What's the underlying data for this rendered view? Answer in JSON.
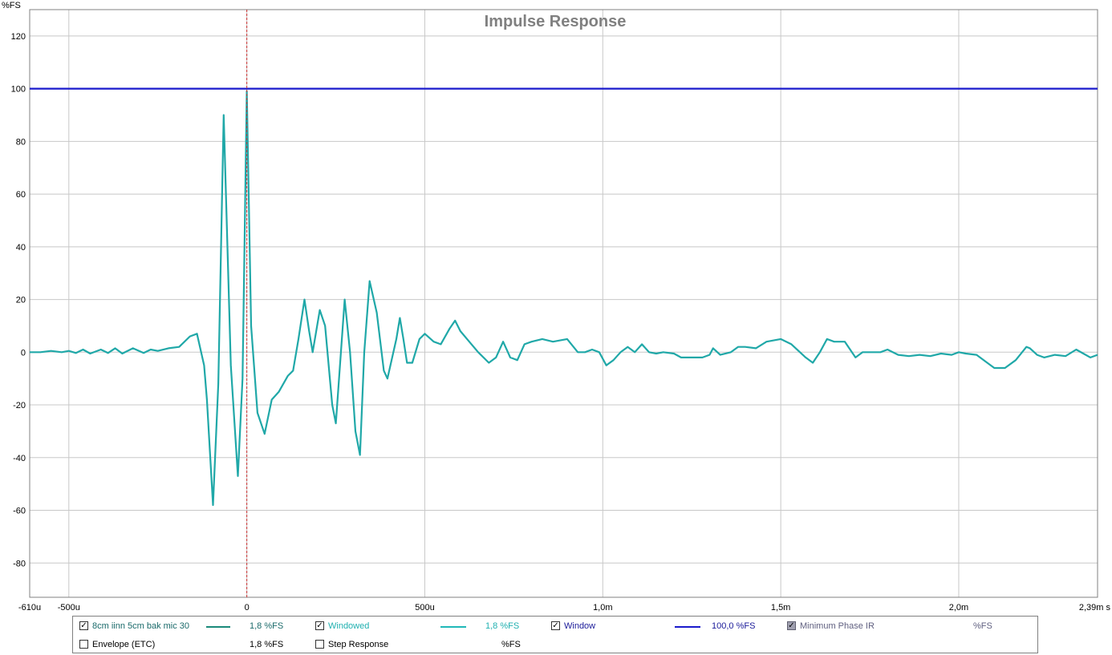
{
  "chart_data": {
    "type": "line",
    "title": "Impulse Response",
    "ylabel": "%FS",
    "x_unit_label": "s",
    "xlim": [
      -0.00061,
      0.00239
    ],
    "ylim": [
      -93,
      130
    ],
    "x_ticks": [
      {
        "x": -0.00061,
        "label": "-610u"
      },
      {
        "x": -0.0005,
        "label": "-500u"
      },
      {
        "x": 0,
        "label": "0"
      },
      {
        "x": 0.0005,
        "label": "500u"
      },
      {
        "x": 0.001,
        "label": "1,0m"
      },
      {
        "x": 0.0015,
        "label": "1,5m"
      },
      {
        "x": 0.002,
        "label": "2,0m"
      },
      {
        "x": 0.00239,
        "label": "2,39m s"
      }
    ],
    "y_ticks": [
      120,
      100,
      80,
      60,
      40,
      20,
      0,
      -20,
      -40,
      -60,
      -80
    ],
    "grid": true,
    "markers": [
      {
        "type": "vertical-dashed",
        "x": 0,
        "color": "#cc3333"
      }
    ],
    "series": [
      {
        "name": "Window",
        "color": "#1a1acc",
        "points": [
          [
            -0.00061,
            100
          ],
          [
            0.00239,
            100
          ]
        ]
      },
      {
        "name": "8cm iinn 5cm bak mic 30",
        "color": "#20a8a8",
        "points": [
          [
            -0.00061,
            0
          ],
          [
            -0.00058,
            0
          ],
          [
            -0.00055,
            0.5
          ],
          [
            -0.00052,
            0
          ],
          [
            -0.0005,
            0.5
          ],
          [
            -0.00048,
            -0.3
          ],
          [
            -0.00046,
            1
          ],
          [
            -0.00044,
            -0.5
          ],
          [
            -0.00041,
            1
          ],
          [
            -0.00039,
            -0.3
          ],
          [
            -0.00037,
            1.5
          ],
          [
            -0.00035,
            -0.5
          ],
          [
            -0.00032,
            1.5
          ],
          [
            -0.00029,
            -0.3
          ],
          [
            -0.00027,
            1
          ],
          [
            -0.00025,
            0.5
          ],
          [
            -0.00022,
            1.5
          ],
          [
            -0.00019,
            2
          ],
          [
            -0.00016,
            6
          ],
          [
            -0.00014,
            7
          ],
          [
            -0.00012,
            -5
          ],
          [
            -0.000112,
            -18
          ],
          [
            -9.5e-05,
            -58
          ],
          [
            -8e-05,
            -12
          ],
          [
            -6.5e-05,
            90
          ],
          [
            -4.5e-05,
            -5
          ],
          [
            -2.5e-05,
            -47
          ],
          [
            -1.2e-05,
            -10
          ],
          [
            0,
            99
          ],
          [
            1.2e-05,
            10
          ],
          [
            3e-05,
            -23
          ],
          [
            5e-05,
            -31
          ],
          [
            7e-05,
            -18
          ],
          [
            9e-05,
            -15
          ],
          [
            0.000115,
            -9
          ],
          [
            0.00013,
            -7
          ],
          [
            0.000145,
            5
          ],
          [
            0.000162,
            20
          ],
          [
            0.000175,
            8
          ],
          [
            0.000185,
            0
          ],
          [
            0.000205,
            16
          ],
          [
            0.00022,
            10
          ],
          [
            0.00024,
            -20
          ],
          [
            0.00025,
            -27
          ],
          [
            0.000275,
            20
          ],
          [
            0.00029,
            0
          ],
          [
            0.000305,
            -30
          ],
          [
            0.000318,
            -39
          ],
          [
            0.00033,
            0
          ],
          [
            0.000345,
            27
          ],
          [
            0.000365,
            15
          ],
          [
            0.000385,
            -7
          ],
          [
            0.000395,
            -10
          ],
          [
            0.00042,
            5
          ],
          [
            0.00043,
            13
          ],
          [
            0.00044,
            5
          ],
          [
            0.00045,
            -4
          ],
          [
            0.000465,
            -4
          ],
          [
            0.000485,
            5
          ],
          [
            0.0005,
            7
          ],
          [
            0.000525,
            4
          ],
          [
            0.000545,
            3
          ],
          [
            0.00057,
            9
          ],
          [
            0.000585,
            12
          ],
          [
            0.0006,
            8
          ],
          [
            0.000625,
            4
          ],
          [
            0.00065,
            0
          ],
          [
            0.00068,
            -4
          ],
          [
            0.0007,
            -2
          ],
          [
            0.00072,
            4
          ],
          [
            0.00074,
            -2
          ],
          [
            0.00076,
            -3
          ],
          [
            0.00078,
            3
          ],
          [
            0.0008,
            4
          ],
          [
            0.00083,
            5
          ],
          [
            0.00086,
            4
          ],
          [
            0.0009,
            5
          ],
          [
            0.00093,
            0
          ],
          [
            0.00095,
            0
          ],
          [
            0.00097,
            1
          ],
          [
            0.00099,
            0
          ],
          [
            0.00101,
            -5
          ],
          [
            0.00103,
            -3
          ],
          [
            0.00105,
            0
          ],
          [
            0.00107,
            2
          ],
          [
            0.00109,
            0
          ],
          [
            0.00111,
            3
          ],
          [
            0.00113,
            0
          ],
          [
            0.00115,
            -0.5
          ],
          [
            0.00117,
            0
          ],
          [
            0.0012,
            -0.5
          ],
          [
            0.00122,
            -2
          ],
          [
            0.00125,
            -2
          ],
          [
            0.00128,
            -2
          ],
          [
            0.0013,
            -1
          ],
          [
            0.00131,
            1.5
          ],
          [
            0.00133,
            -1
          ],
          [
            0.00136,
            0
          ],
          [
            0.00138,
            2
          ],
          [
            0.0014,
            2
          ],
          [
            0.00143,
            1.5
          ],
          [
            0.00146,
            4
          ],
          [
            0.0015,
            5
          ],
          [
            0.00153,
            3
          ],
          [
            0.00157,
            -2
          ],
          [
            0.00159,
            -4
          ],
          [
            0.00161,
            0
          ],
          [
            0.00163,
            5
          ],
          [
            0.00165,
            4
          ],
          [
            0.00168,
            4
          ],
          [
            0.00171,
            -2
          ],
          [
            0.00173,
            0
          ],
          [
            0.00176,
            0
          ],
          [
            0.00178,
            0
          ],
          [
            0.0018,
            1
          ],
          [
            0.00183,
            -1
          ],
          [
            0.00186,
            -1.5
          ],
          [
            0.00189,
            -1
          ],
          [
            0.00192,
            -1.5
          ],
          [
            0.00195,
            -0.5
          ],
          [
            0.00198,
            -1
          ],
          [
            0.002,
            0
          ],
          [
            0.00202,
            -0.5
          ],
          [
            0.00205,
            -1
          ],
          [
            0.00208,
            -4
          ],
          [
            0.0021,
            -6
          ],
          [
            0.00213,
            -6
          ],
          [
            0.00216,
            -3
          ],
          [
            0.00219,
            2
          ],
          [
            0.0022,
            1.5
          ],
          [
            0.00222,
            -1
          ],
          [
            0.00224,
            -2
          ],
          [
            0.00227,
            -1
          ],
          [
            0.0023,
            -1.5
          ],
          [
            0.00233,
            1
          ],
          [
            0.00235,
            -0.5
          ],
          [
            0.00237,
            -2
          ],
          [
            0.00239,
            -1
          ]
        ]
      }
    ]
  },
  "legend": {
    "row1": [
      {
        "label": "8cm iinn 5cm bak mic 30",
        "value": "1,8 %FS",
        "checked": true,
        "swatch": "#1a8a7a"
      },
      {
        "label": "Windowed",
        "value": "1,8 %FS",
        "checked": true,
        "swatch": "#20b8b8"
      },
      {
        "label": "Window",
        "value": "100,0 %FS",
        "checked": true,
        "swatch": "#1a1acc"
      },
      {
        "label": "Minimum Phase IR",
        "value": "%FS",
        "checked": true,
        "disabled": true
      }
    ],
    "row2": [
      {
        "label": "Envelope (ETC)",
        "value": "1,8 %FS",
        "checked": false
      },
      {
        "label": "Step Response",
        "value": "%FS",
        "checked": false
      }
    ]
  }
}
